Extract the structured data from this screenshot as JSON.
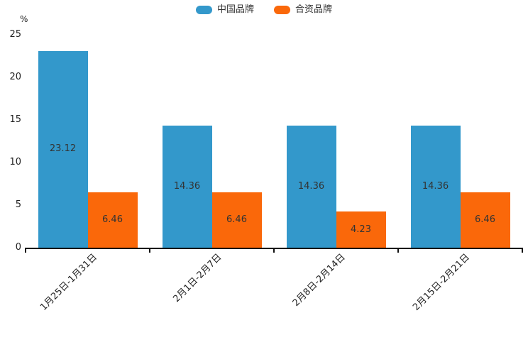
{
  "chart_data": {
    "type": "bar",
    "title": "",
    "unit_label": "%",
    "categories": [
      "1月25日-1月31日",
      "2月1日-2月7日",
      "2月8日-2月14日",
      "2月15日-2月21日"
    ],
    "series": [
      {
        "name": "中国品牌",
        "color": "#3398cb",
        "values": [
          23.12,
          14.36,
          14.36,
          14.36
        ]
      },
      {
        "name": "合资品牌",
        "color": "#fa680a",
        "values": [
          6.46,
          6.46,
          4.23,
          6.46
        ]
      }
    ],
    "value_labels": [
      "23.12",
      "6.46",
      "14.36",
      "6.46",
      "14.36",
      "4.23",
      "14.36",
      "6.46"
    ],
    "xlabel": "",
    "ylabel": "%",
    "ylim": [
      0,
      25
    ],
    "yticks": [
      0,
      5,
      10,
      15,
      20,
      25
    ],
    "grid": false,
    "legend_position": "top-center",
    "value_label_position": "inside-center",
    "axis_color": "#111111",
    "text_color": "#333333"
  }
}
